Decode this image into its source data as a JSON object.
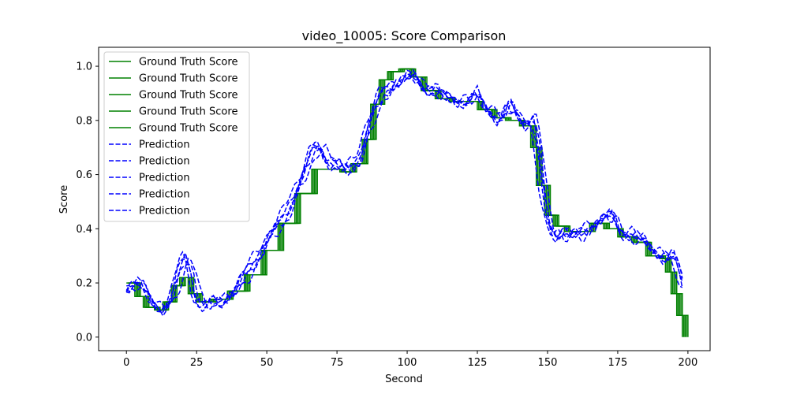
{
  "chart_data": {
    "type": "line",
    "title": "video_10005: Score Comparison",
    "xlabel": "Second",
    "ylabel": "Score",
    "xlim": [
      -9.9,
      207.9
    ],
    "ylim": [
      -0.05,
      1.07
    ],
    "xticks": [
      0,
      25,
      50,
      75,
      100,
      125,
      150,
      175,
      200
    ],
    "yticks": [
      0.0,
      0.2,
      0.4,
      0.6,
      0.8,
      1.0
    ],
    "xtick_labels": [
      "0",
      "25",
      "50",
      "75",
      "100",
      "125",
      "150",
      "175",
      "200"
    ],
    "ytick_labels": [
      "0.0",
      "0.2",
      "0.4",
      "0.6",
      "0.8",
      "1.0"
    ],
    "grid": false,
    "legend_position": "top-left",
    "colors": {
      "ground_truth": "#008000",
      "prediction": "#0000ff"
    },
    "ground_truth_base": {
      "x": [
        0,
        3,
        6,
        10,
        13,
        16,
        19,
        22,
        25,
        30,
        36,
        42,
        48,
        54,
        60,
        66,
        72,
        76,
        80,
        84,
        87,
        90,
        93,
        97,
        101,
        105,
        110,
        115,
        120,
        125,
        130,
        135,
        140,
        144,
        146,
        149,
        152,
        156,
        160,
        165,
        170,
        175,
        180,
        185,
        188,
        190,
        192,
        194,
        196,
        198
      ],
      "y": [
        0.2,
        0.15,
        0.11,
        0.1,
        0.13,
        0.19,
        0.22,
        0.16,
        0.13,
        0.14,
        0.17,
        0.23,
        0.32,
        0.42,
        0.53,
        0.62,
        0.62,
        0.61,
        0.64,
        0.73,
        0.86,
        0.95,
        0.98,
        0.99,
        0.96,
        0.91,
        0.88,
        0.87,
        0.87,
        0.84,
        0.81,
        0.8,
        0.78,
        0.7,
        0.56,
        0.45,
        0.41,
        0.39,
        0.39,
        0.42,
        0.4,
        0.37,
        0.35,
        0.3,
        0.3,
        0.29,
        0.24,
        0.16,
        0.08,
        0.0
      ]
    },
    "prediction_base": {
      "x": [
        0,
        3,
        6,
        9,
        12,
        15,
        18,
        20,
        22,
        24,
        27,
        30,
        34,
        38,
        42,
        46,
        50,
        55,
        60,
        63,
        66,
        68,
        70,
        74,
        78,
        82,
        86,
        90,
        94,
        98,
        100,
        102,
        104,
        108,
        112,
        116,
        120,
        124,
        127,
        130,
        133,
        136,
        138,
        141,
        144,
        146,
        148,
        150,
        152,
        154,
        158,
        162,
        166,
        170,
        172,
        175,
        180,
        184,
        188,
        192,
        194,
        196,
        198
      ],
      "y": [
        0.18,
        0.2,
        0.17,
        0.12,
        0.1,
        0.13,
        0.25,
        0.3,
        0.26,
        0.14,
        0.11,
        0.13,
        0.14,
        0.17,
        0.24,
        0.3,
        0.37,
        0.44,
        0.55,
        0.62,
        0.7,
        0.71,
        0.66,
        0.63,
        0.62,
        0.66,
        0.8,
        0.9,
        0.93,
        0.95,
        0.96,
        0.97,
        0.93,
        0.91,
        0.89,
        0.88,
        0.86,
        0.9,
        0.85,
        0.82,
        0.8,
        0.87,
        0.82,
        0.79,
        0.8,
        0.68,
        0.5,
        0.4,
        0.37,
        0.39,
        0.37,
        0.39,
        0.42,
        0.44,
        0.46,
        0.39,
        0.37,
        0.35,
        0.31,
        0.29,
        0.3,
        0.24,
        0.16
      ]
    },
    "series": [
      {
        "name": "Ground Truth Score",
        "kind": "ground_truth",
        "shift": 0.0,
        "noise": 0.0
      },
      {
        "name": "Ground Truth Score",
        "kind": "ground_truth",
        "shift": 0.5,
        "noise": 0.0
      },
      {
        "name": "Ground Truth Score",
        "kind": "ground_truth",
        "shift": 1.0,
        "noise": 0.0
      },
      {
        "name": "Ground Truth Score",
        "kind": "ground_truth",
        "shift": 1.5,
        "noise": 0.0
      },
      {
        "name": "Ground Truth Score",
        "kind": "ground_truth",
        "shift": 2.0,
        "noise": 0.0
      },
      {
        "name": "Prediction",
        "kind": "prediction",
        "shift": -0.5,
        "noise": 0.025
      },
      {
        "name": "Prediction",
        "kind": "prediction",
        "shift": 0.5,
        "noise": 0.02
      },
      {
        "name": "Prediction",
        "kind": "prediction",
        "shift": 1.0,
        "noise": 0.03
      },
      {
        "name": "Prediction",
        "kind": "prediction",
        "shift": 1.5,
        "noise": 0.025
      },
      {
        "name": "Prediction",
        "kind": "prediction",
        "shift": 2.5,
        "noise": 0.03
      }
    ]
  }
}
